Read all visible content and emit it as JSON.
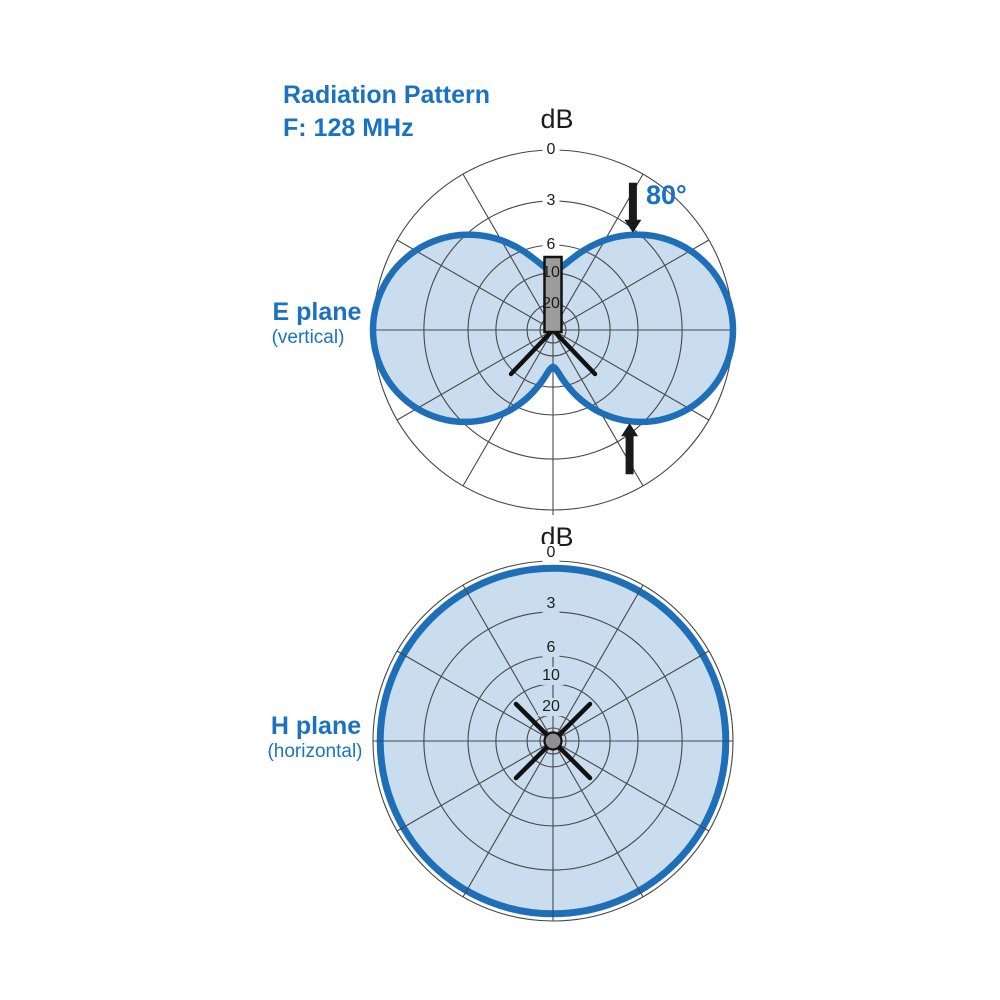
{
  "title": {
    "line1": "Radiation Pattern",
    "line2": "F: 128 MHz"
  },
  "colors": {
    "accent_blue": "#1a73c2",
    "text_black": "#1c1c1c",
    "grid": "#474747",
    "pattern_stroke": "#1e6fb7",
    "pattern_fill": "#c9ddee",
    "element_gray": "#9c9c9c",
    "hub_gray": "#909090",
    "arrow_black": "#1a1a1a"
  },
  "chart_data": [
    {
      "id": "e-plane",
      "type": "polar",
      "axis_unit": "dB",
      "plane_label": "E plane",
      "plane_sublabel": "(vertical)",
      "beamwidth_label": "80°",
      "rings": [
        {
          "db_label": "0",
          "radius_frac": 1.0
        },
        {
          "db_label": "3",
          "radius_frac": 0.717
        },
        {
          "db_label": "6",
          "radius_frac": 0.472
        },
        {
          "db_label": "10",
          "radius_frac": 0.317
        },
        {
          "db_label": "20",
          "radius_frac": 0.144
        },
        {
          "db_label": "",
          "radius_frac": 0.072
        }
      ],
      "spoke_step_deg": 30,
      "pattern_shape": "two-lobe dipole figure-eight, lobes left and right, notch at top and sharper notch at bottom",
      "lobe_model": {
        "max_frac": 1.0,
        "top_null_frac": 0.33,
        "bottom_null_frac": 0.205
      },
      "samples_deg_frac": [
        [
          0,
          0.33
        ],
        [
          15,
          0.411
        ],
        [
          30,
          0.576
        ],
        [
          45,
          0.745
        ],
        [
          60,
          0.882
        ],
        [
          75,
          0.97
        ],
        [
          90,
          1.0
        ],
        [
          105,
          0.967
        ],
        [
          120,
          0.872
        ],
        [
          135,
          0.722
        ],
        [
          150,
          0.531
        ],
        [
          165,
          0.326
        ],
        [
          180,
          0.205
        ]
      ],
      "annotations": {
        "antenna_symbol": "vertical dipole element with two ground radials at center"
      }
    },
    {
      "id": "h-plane",
      "type": "polar",
      "axis_unit": "dB",
      "plane_label": "H plane",
      "plane_sublabel": "(horizontal)",
      "rings": [
        {
          "db_label": "0",
          "radius_frac": 1.0
        },
        {
          "db_label": "3",
          "radius_frac": 0.717
        },
        {
          "db_label": "6",
          "radius_frac": 0.472
        },
        {
          "db_label": "10",
          "radius_frac": 0.317
        },
        {
          "db_label": "20",
          "radius_frac": 0.144
        },
        {
          "db_label": "",
          "radius_frac": 0.072
        }
      ],
      "spoke_step_deg": 30,
      "pattern_shape": "omnidirectional circle at 0 dB",
      "circle_radius_frac": 0.96,
      "annotations": {
        "antenna_symbol": "center hub with four crossed radials"
      }
    }
  ]
}
